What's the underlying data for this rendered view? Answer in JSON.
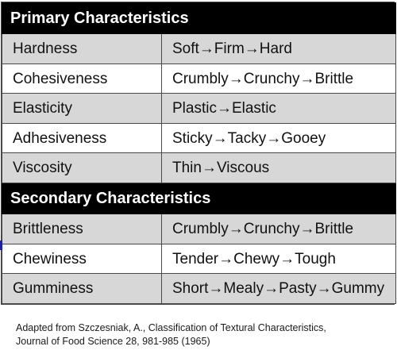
{
  "table": {
    "sections": [
      {
        "title": "Primary Characteristics",
        "rows": [
          {
            "characteristic": "Hardness",
            "scale": "Soft→Firm→Hard"
          },
          {
            "characteristic": "Cohesiveness",
            "scale": "Crumbly→Crunchy→Brittle"
          },
          {
            "characteristic": "Elasticity",
            "scale": "Plastic→Elastic"
          },
          {
            "characteristic": "Adhesiveness",
            "scale": "Sticky→Tacky→Gooey"
          },
          {
            "characteristic": "Viscosity",
            "scale": "Thin→Viscous"
          }
        ]
      },
      {
        "title": "Secondary Characteristics",
        "rows": [
          {
            "characteristic": "Brittleness",
            "scale": "Crumbly→Crunchy→Brittle"
          },
          {
            "characteristic": "Chewiness",
            "scale": "Tender→Chewy→Tough"
          },
          {
            "characteristic": "Gumminess",
            "scale": "Short→Mealy→Pasty→Gummy"
          }
        ]
      }
    ]
  },
  "caption": {
    "line1": "Adapted from  Szczesniak, A., Classification of Textural Characteristics,",
    "line2": "Journal of Food Science 28, 981-985 (1965)"
  },
  "colors": {
    "header_bg": "#000000",
    "header_text": "#ffffff",
    "row_gray": "#d7d7d7",
    "row_white": "#ffffff",
    "grid": "#4a4a4a"
  }
}
